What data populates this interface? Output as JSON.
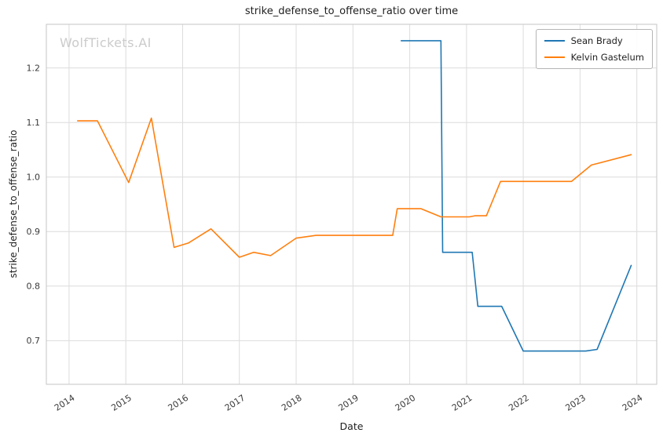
{
  "watermark": "WolfTickets.AI",
  "chart_data": {
    "type": "line",
    "title": "strike_defense_to_offense_ratio over time",
    "xlabel": "Date",
    "ylabel": "strike_defense_to_offense_ratio",
    "xlim": [
      2013.6,
      2024.35
    ],
    "ylim": [
      0.62,
      1.28
    ],
    "xticks": [
      2014,
      2015,
      2016,
      2017,
      2018,
      2019,
      2020,
      2021,
      2022,
      2023,
      2024
    ],
    "yticks": [
      0.7,
      0.8,
      0.9,
      1.0,
      1.1,
      1.2
    ],
    "grid": true,
    "legend_position": "top-right",
    "series": [
      {
        "name": "Sean Brady",
        "color": "#1f77b4",
        "x": [
          2019.85,
          2020.55,
          2020.58,
          2021.1,
          2021.2,
          2021.62,
          2022.0,
          2023.1,
          2023.3,
          2023.9
        ],
        "y": [
          1.25,
          1.25,
          0.862,
          0.862,
          0.763,
          0.763,
          0.681,
          0.681,
          0.684,
          0.838
        ]
      },
      {
        "name": "Kelvin Gastelum",
        "color": "#ff7f0e",
        "x": [
          2014.15,
          2014.5,
          2015.05,
          2015.45,
          2015.85,
          2016.1,
          2016.5,
          2017.0,
          2017.25,
          2017.55,
          2018.0,
          2018.35,
          2019.7,
          2019.78,
          2020.2,
          2020.55,
          2021.05,
          2021.15,
          2021.35,
          2021.6,
          2022.85,
          2023.2,
          2023.9
        ],
        "y": [
          1.103,
          1.103,
          0.99,
          1.108,
          0.871,
          0.879,
          0.905,
          0.853,
          0.862,
          0.856,
          0.888,
          0.893,
          0.893,
          0.942,
          0.942,
          0.927,
          0.927,
          0.929,
          0.929,
          0.992,
          0.992,
          1.022,
          1.041
        ]
      }
    ]
  }
}
